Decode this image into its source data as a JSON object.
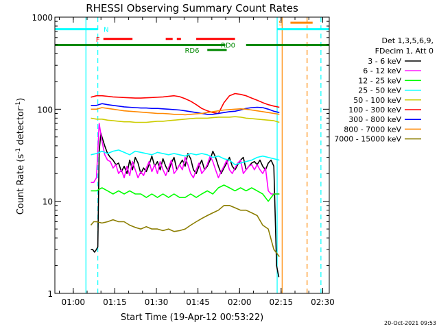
{
  "chart_data": {
    "type": "line",
    "title": "RHESSI Observing Summary Count Rates",
    "xlabel": "Start Time (19-Apr-12 00:53:22)",
    "ylabel_main": "Count Rate (s",
    "ylabel_sup1": "-1",
    "ylabel_mid": " detector",
    "ylabel_sup2": "-1",
    "ylabel_end": ")",
    "yscale": "log",
    "ylim": [
      1,
      1000
    ],
    "xlim_minutes": [
      0,
      99
    ],
    "x_ticks": [
      {
        "label": "01:00",
        "m": 6.63
      },
      {
        "label": "01:15",
        "m": 21.63
      },
      {
        "label": "01:30",
        "m": 36.63
      },
      {
        "label": "01:45",
        "m": 51.63
      },
      {
        "label": "02:00",
        "m": 66.63
      },
      {
        "label": "02:15",
        "m": 81.63
      },
      {
        "label": "02:30",
        "m": 96.63
      }
    ],
    "y_ticks": [
      {
        "label": "1",
        "v": 1
      },
      {
        "label": "10",
        "v": 10
      },
      {
        "label": "100",
        "v": 100
      },
      {
        "label": "1000",
        "v": 1000
      }
    ],
    "legend_header": [
      "Det 1,3,5,6,9,",
      "FDecim 1, Att 0"
    ],
    "legend_position": "right",
    "series": [
      {
        "name": "3 - 6 keV",
        "color": "#000000",
        "x": [
          13.0,
          13.6,
          14.3,
          15.0,
          15.5,
          16.0,
          16.6,
          17.0,
          18,
          19,
          20,
          21,
          22,
          23,
          24,
          25,
          26,
          27,
          28,
          29,
          30,
          31,
          32,
          33,
          34,
          35,
          36,
          37,
          38,
          39,
          40,
          41,
          42,
          43,
          44,
          45,
          46,
          47,
          48,
          49,
          50,
          51,
          52,
          53,
          54,
          55,
          56,
          57,
          58,
          59,
          60,
          61,
          62,
          63,
          64,
          65,
          66,
          67,
          68,
          69,
          70,
          71,
          72,
          73,
          74,
          75,
          76,
          77,
          78,
          79,
          80,
          80.8
        ],
        "y": [
          3,
          3,
          2.8,
          3,
          3.2,
          35,
          55,
          50,
          40,
          33,
          30,
          28,
          25,
          26,
          21,
          24,
          20,
          28,
          22,
          30,
          26,
          20,
          23,
          21,
          25,
          31,
          24,
          27,
          22,
          29,
          24,
          21,
          26,
          30,
          22,
          25,
          28,
          24,
          33,
          29,
          22,
          20,
          24,
          28,
          22,
          24,
          28,
          35,
          30,
          24,
          20,
          23,
          26,
          30,
          24,
          22,
          25,
          28,
          30,
          22,
          24,
          26,
          27,
          25,
          28,
          24,
          22,
          26,
          28,
          24,
          2,
          1.5
        ]
      },
      {
        "name": "6 - 12 keV",
        "color": "#ff00ff",
        "x": [
          13,
          14,
          15,
          16,
          17,
          18,
          19,
          20,
          21,
          22,
          23,
          24,
          25,
          26,
          27,
          28,
          29,
          30,
          31,
          32,
          33,
          34,
          35,
          36,
          37,
          38,
          39,
          40,
          41,
          42,
          43,
          44,
          45,
          46,
          47,
          48,
          49,
          50,
          51,
          52,
          53,
          54,
          55,
          56,
          57,
          58,
          59,
          60,
          61,
          62,
          63,
          64,
          65,
          66,
          67,
          68,
          69,
          70,
          71,
          72,
          73,
          74,
          75,
          76,
          77,
          78,
          79,
          80,
          81
        ],
        "y": [
          16,
          16,
          18,
          70,
          45,
          32,
          28,
          27,
          23,
          25,
          20,
          22,
          18,
          24,
          19,
          27,
          22,
          18,
          21,
          19,
          23,
          27,
          21,
          25,
          20,
          27,
          22,
          19,
          23,
          28,
          20,
          22,
          25,
          22,
          30,
          25,
          20,
          18,
          22,
          26,
          20,
          22,
          25,
          31,
          27,
          22,
          18,
          21,
          24,
          28,
          22,
          20,
          23,
          26,
          28,
          20,
          22,
          24,
          25,
          22,
          25,
          22,
          20,
          23,
          13,
          12,
          12,
          12,
          12
        ]
      },
      {
        "name": "12 - 25 keV",
        "color": "#00ff00",
        "x": [
          13,
          15,
          17,
          19,
          21,
          23,
          25,
          27,
          29,
          31,
          33,
          35,
          37,
          39,
          41,
          43,
          45,
          47,
          49,
          51,
          53,
          55,
          57,
          59,
          61,
          63,
          65,
          67,
          69,
          71,
          73,
          75,
          77,
          79,
          81
        ],
        "y": [
          13,
          13,
          14,
          13,
          12,
          13,
          12,
          13,
          12,
          12,
          11,
          12,
          11,
          12,
          11,
          12,
          11,
          11,
          12,
          11,
          12,
          13,
          12,
          14,
          15,
          14,
          13,
          14,
          13,
          14,
          13,
          12,
          10,
          12,
          12
        ]
      },
      {
        "name": "25 - 50 keV",
        "color": "#00ffff",
        "x": [
          13,
          15,
          17,
          19,
          21,
          23,
          25,
          27,
          29,
          31,
          33,
          35,
          37,
          39,
          41,
          43,
          45,
          47,
          49,
          51,
          53,
          55,
          57,
          59,
          61,
          63,
          65,
          67,
          69,
          71,
          73,
          75,
          77,
          79,
          81
        ],
        "y": [
          32,
          33,
          35,
          33,
          35,
          36,
          34,
          32,
          35,
          34,
          33,
          32,
          34,
          33,
          32,
          33,
          32,
          31,
          33,
          32,
          33,
          32,
          30,
          31,
          29,
          28,
          25,
          26,
          27,
          28,
          30,
          31,
          30,
          29,
          28
        ]
      },
      {
        "name": "50 - 100 keV",
        "color": "#cccc00",
        "x": [
          13,
          15,
          17,
          19,
          21,
          23,
          25,
          27,
          29,
          31,
          33,
          35,
          37,
          39,
          41,
          43,
          45,
          47,
          49,
          51,
          53,
          55,
          57,
          59,
          61,
          63,
          65,
          67,
          69,
          71,
          73,
          75,
          77,
          79,
          81
        ],
        "y": [
          80,
          78,
          78,
          76,
          75,
          74,
          73,
          73,
          72,
          72,
          72,
          73,
          74,
          74,
          75,
          76,
          77,
          78,
          79,
          80,
          80,
          80,
          81,
          82,
          82,
          82,
          83,
          82,
          80,
          79,
          78,
          77,
          76,
          75,
          72
        ]
      },
      {
        "name": "100 - 300 keV",
        "color": "#ff0000",
        "x": [
          13,
          15,
          17,
          19,
          21,
          23,
          25,
          27,
          29,
          31,
          33,
          35,
          37,
          39,
          41,
          43,
          45,
          47,
          49,
          51,
          53,
          55,
          57,
          59,
          61,
          63,
          65,
          67,
          69,
          71,
          73,
          75,
          77,
          79,
          81
        ],
        "y": [
          135,
          140,
          140,
          138,
          136,
          135,
          134,
          133,
          132,
          132,
          133,
          134,
          135,
          136,
          138,
          140,
          137,
          130,
          122,
          112,
          102,
          96,
          92,
          90,
          118,
          140,
          148,
          145,
          140,
          132,
          125,
          118,
          112,
          108,
          105
        ]
      },
      {
        "name": "300 - 800 keV",
        "color": "#0000ff",
        "x": [
          13,
          15,
          17,
          19,
          21,
          23,
          25,
          27,
          29,
          31,
          33,
          35,
          37,
          39,
          41,
          43,
          45,
          47,
          49,
          51,
          53,
          55,
          57,
          59,
          61,
          63,
          65,
          67,
          69,
          71,
          73,
          75,
          77,
          79,
          81
        ],
        "y": [
          110,
          110,
          115,
          112,
          110,
          108,
          106,
          105,
          104,
          103,
          103,
          102,
          102,
          101,
          100,
          99,
          98,
          96,
          94,
          92,
          90,
          88,
          88,
          90,
          92,
          94,
          95,
          98,
          102,
          104,
          105,
          104,
          100,
          95,
          92
        ]
      },
      {
        "name": "800 - 7000 keV",
        "color": "#ff8800",
        "x": [
          13,
          15,
          17,
          19,
          21,
          23,
          25,
          27,
          29,
          31,
          33,
          35,
          37,
          39,
          41,
          43,
          45,
          47,
          49,
          51,
          53,
          55,
          57,
          59,
          61,
          63,
          65,
          67,
          69,
          71,
          73,
          75,
          77,
          79,
          81
        ],
        "y": [
          100,
          100,
          104,
          102,
          100,
          98,
          96,
          95,
          94,
          93,
          92,
          91,
          90,
          90,
          89,
          88,
          88,
          87,
          88,
          89,
          90,
          92,
          94,
          96,
          98,
          99,
          100,
          101,
          100,
          98,
          96,
          94,
          92,
          90,
          88
        ]
      },
      {
        "name": "7000 - 15000 keV",
        "color": "#8b7d00",
        "x": [
          13,
          14,
          15,
          17,
          19,
          21,
          23,
          25,
          27,
          29,
          31,
          33,
          35,
          37,
          39,
          41,
          43,
          45,
          47,
          49,
          51,
          53,
          55,
          57,
          59,
          61,
          63,
          65,
          67,
          69,
          71,
          73,
          75,
          77,
          79,
          81
        ],
        "y": [
          5.5,
          6,
          6,
          5.8,
          6,
          6.3,
          6,
          6,
          5.5,
          5.2,
          5,
          5.3,
          5,
          5,
          4.8,
          5,
          4.7,
          4.8,
          5,
          5.5,
          6,
          6.5,
          7,
          7.5,
          8,
          9,
          9,
          8.5,
          8,
          8,
          7.5,
          7,
          5.5,
          5,
          3,
          2.5
        ]
      }
    ],
    "vertical_lines": [
      {
        "m": 11.2,
        "color": "#00ffff",
        "style": "solid"
      },
      {
        "m": 15.5,
        "color": "#00ffff",
        "style": "dashed"
      },
      {
        "m": 80.2,
        "color": "#00ffff",
        "style": "solid"
      },
      {
        "m": 82.0,
        "color": "#ff8800",
        "style": "solid"
      },
      {
        "m": 91.0,
        "color": "#ff8800",
        "style": "dashed"
      },
      {
        "m": 96.0,
        "color": "#00ffff",
        "style": "dashed"
      }
    ],
    "flags": [
      {
        "label": "N",
        "color": "#00ffff",
        "y": 740,
        "segments": [
          [
            0,
            15.5
          ],
          [
            80.2,
            99
          ]
        ],
        "label_m": 18.5
      },
      {
        "label": "S",
        "color": "#ff8800",
        "y": 870,
        "segments": [
          [
            85,
            93
          ]
        ],
        "label_m": 81.5
      },
      {
        "label": "F",
        "color": "#ff0000",
        "y": 580,
        "segments": [
          [
            17.5,
            28
          ],
          [
            40,
            42.5
          ],
          [
            44,
            45.5
          ],
          [
            51,
            65
          ]
        ],
        "label_m": 15.5
      },
      {
        "label": "RD0",
        "color": "#008800",
        "y": 500,
        "segments": [
          [
            0,
            61.5
          ],
          [
            69,
            99
          ]
        ],
        "label_m": 62.5
      },
      {
        "label": "RD6",
        "color": "#008800",
        "y": 440,
        "segments": [
          [
            55,
            62
          ]
        ],
        "label_m": 49.5
      }
    ],
    "grid": false
  },
  "footer_date": "20-Oct-2021 09:53"
}
